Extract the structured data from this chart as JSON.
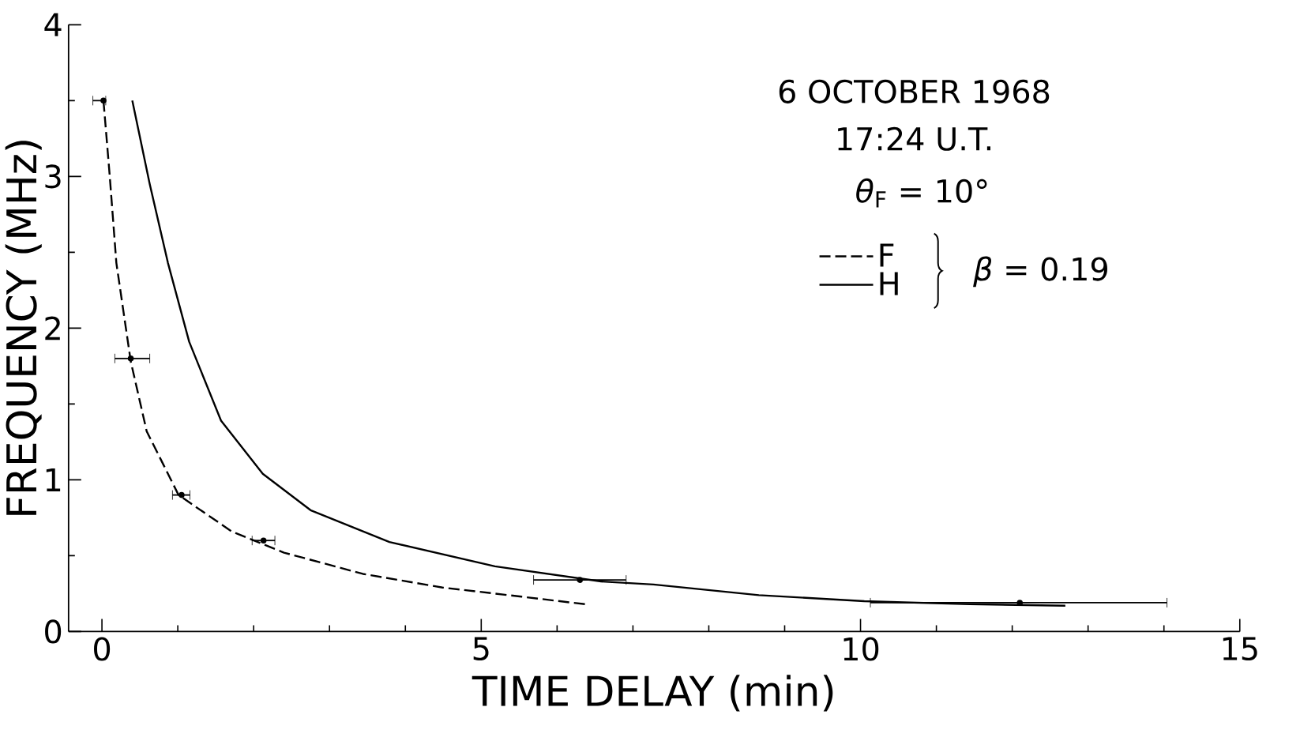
{
  "chart_data": {
    "type": "line",
    "xlabel": "TIME DELAY (min)",
    "ylabel": "FREQUENCY (MHz)",
    "xlim": [
      -0.44,
      15
    ],
    "ylim": [
      0,
      4
    ],
    "xticks": [
      0,
      5,
      10,
      15
    ],
    "yticks": [
      0,
      1,
      2,
      3,
      4
    ],
    "legend": "top right",
    "grid": false,
    "annotations": [
      "6 OCTOBER 1968",
      "17:24 U.T.",
      "*θ*$_{F}$ = 10°",
      "*β* = 0.19"
    ],
    "series": [
      {
        "name": "F",
        "color": "#000000",
        "line_style": "dashed",
        "marker": "none",
        "x": [
          0.02,
          0.1,
          0.19,
          0.38,
          0.59,
          1.01,
          1.71,
          2.4,
          3.44,
          4.49,
          5.53,
          6.37
        ],
        "values": [
          3.5,
          3.02,
          2.43,
          1.78,
          1.32,
          0.9,
          0.66,
          0.52,
          0.38,
          0.29,
          0.23,
          0.18
        ]
      },
      {
        "name": "H",
        "color": "#000000",
        "line_style": "solid",
        "marker": "none",
        "x": [
          0.4,
          0.63,
          0.87,
          1.15,
          1.57,
          2.12,
          2.75,
          3.79,
          5.18,
          6.58,
          7.27,
          8.66,
          10.05,
          11.44,
          12.7
        ],
        "values": [
          3.5,
          2.95,
          2.43,
          1.91,
          1.39,
          1.04,
          0.8,
          0.59,
          0.43,
          0.33,
          0.31,
          0.24,
          0.2,
          0.18,
          0.17
        ]
      },
      {
        "type": "scatter",
        "color": "#000000",
        "marker": "circle",
        "x": [
          0.02,
          0.38,
          1.05,
          2.13,
          6.3,
          12.1
        ],
        "values": [
          3.5,
          1.8,
          0.9,
          0.6,
          0.34,
          0.19
        ],
        "xerrors": [
          [
            -0.12,
            0.05
          ],
          [
            0.17,
            0.63
          ],
          [
            0.93,
            1.16
          ],
          [
            1.98,
            2.28
          ],
          [
            5.69,
            6.91
          ],
          [
            10.13,
            14.04
          ]
        ]
      }
    ]
  }
}
